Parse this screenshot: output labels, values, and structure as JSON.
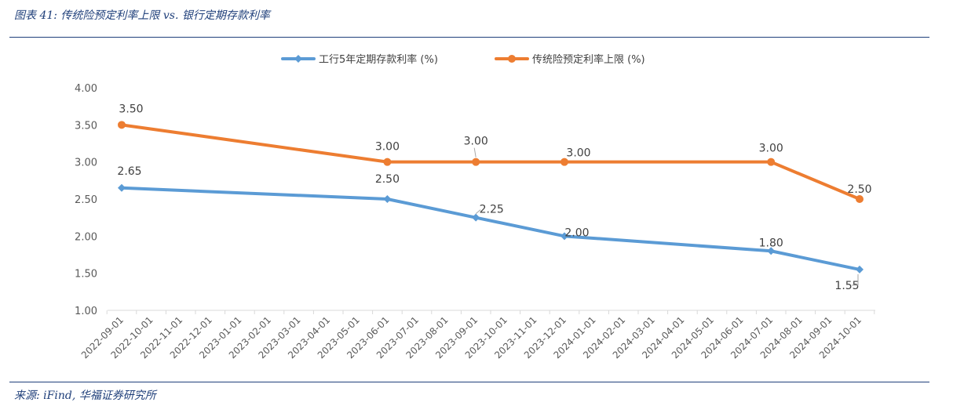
{
  "figure": {
    "title": "图表 41: 传统险预定利率上限 vs. 银行定期存款利率",
    "source": "来源: iFind, 华福证券研究所"
  },
  "chart_data": {
    "type": "line",
    "x": [
      "2022-09-01",
      "2022-10-01",
      "2022-11-01",
      "2022-12-01",
      "2023-01-01",
      "2023-02-01",
      "2023-03-01",
      "2023-04-01",
      "2023-05-01",
      "2023-06-01",
      "2023-07-01",
      "2023-08-01",
      "2023-09-01",
      "2023-10-01",
      "2023-11-01",
      "2023-12-01",
      "2024-01-01",
      "2024-02-01",
      "2024-03-01",
      "2024-04-01",
      "2024-05-01",
      "2024-06-01",
      "2024-07-01",
      "2024-08-01",
      "2024-09-01",
      "2024-10-01"
    ],
    "series": [
      {
        "name": "工行5年定期存款利率 (%)",
        "color": "#5b9bd5",
        "marker": "diamond",
        "points": [
          {
            "x": "2022-09-01",
            "y": 2.65,
            "label": "2.65"
          },
          {
            "x": "2023-06-01",
            "y": 2.5,
            "label": "2.50"
          },
          {
            "x": "2023-09-01",
            "y": 2.25,
            "label": "2.25"
          },
          {
            "x": "2023-12-01",
            "y": 2.0,
            "label": "2.00"
          },
          {
            "x": "2024-07-01",
            "y": 1.8,
            "label": "1.80"
          },
          {
            "x": "2024-10-01",
            "y": 1.55,
            "label": "1.55"
          }
        ]
      },
      {
        "name": "传统险预定利率上限 (%)",
        "color": "#ed7d31",
        "marker": "circle",
        "points": [
          {
            "x": "2022-09-01",
            "y": 3.5,
            "label": "3.50"
          },
          {
            "x": "2023-06-01",
            "y": 3.0,
            "label": "3.00"
          },
          {
            "x": "2023-09-01",
            "y": 3.0,
            "label": "3.00"
          },
          {
            "x": "2023-12-01",
            "y": 3.0,
            "label": "3.00"
          },
          {
            "x": "2024-07-01",
            "y": 3.0,
            "label": "3.00"
          },
          {
            "x": "2024-10-01",
            "y": 2.5,
            "label": "2.50"
          }
        ]
      }
    ],
    "ylim": [
      1.0,
      4.0
    ],
    "yticks": [
      "1.00",
      "1.50",
      "2.00",
      "2.50",
      "3.00",
      "3.50",
      "4.00"
    ],
    "grid": false,
    "legend_position": "top-center",
    "xlabel": "",
    "ylabel": ""
  }
}
